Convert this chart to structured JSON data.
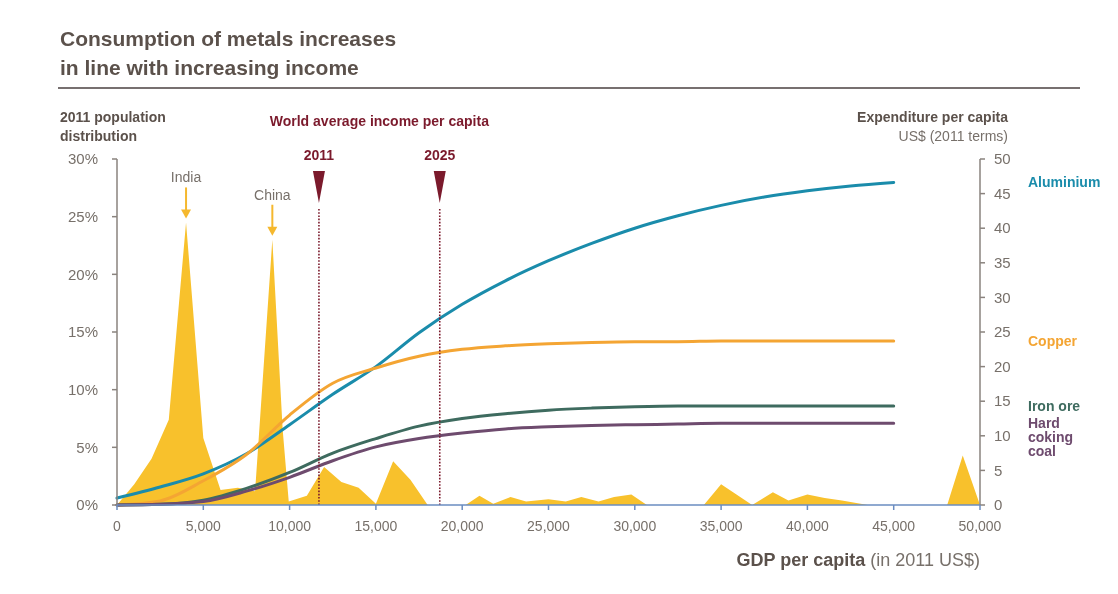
{
  "chart_data": {
    "type": "line",
    "title": "Consumption of metals increases\nin line with increasing income",
    "xlabel": "GDP per capita (in 2011 US$)",
    "ylabel": "2011 population\ndistribution",
    "y2label": "Expenditure per capita\nUS$ (2011 terms)",
    "annotations": [
      "World average income per capita",
      "2011",
      "2025",
      {
        "text": "India",
        "x": 4000,
        "y": 24.5
      },
      {
        "text": "China",
        "x": 9000,
        "y": 23.0
      }
    ],
    "xlim": [
      0,
      50000
    ],
    "xticks": [
      0,
      {
        "value": 5000,
        "label": "5,000"
      },
      {
        "value": 10000,
        "label": "10,000"
      },
      {
        "value": 15000,
        "label": "15,000"
      },
      {
        "value": 20000,
        "label": "20,000"
      },
      {
        "value": 25000,
        "label": "25,000"
      },
      {
        "value": 30000,
        "label": "30,000"
      },
      {
        "value": 35000,
        "label": "35,000"
      },
      {
        "value": 40000,
        "label": "40,000"
      },
      {
        "value": 45000,
        "label": "45,000"
      },
      {
        "value": 50000,
        "label": "50,000"
      }
    ],
    "ylim": [
      0,
      30
    ],
    "yticks": [
      {
        "value": 0,
        "label": "0%"
      },
      {
        "value": 5,
        "label": "5%"
      },
      {
        "value": 10,
        "label": "10%"
      },
      {
        "value": 15,
        "label": "15%"
      },
      {
        "value": 20,
        "label": "20%"
      },
      {
        "value": 25,
        "label": "25%"
      },
      {
        "value": 30,
        "label": "30%"
      }
    ],
    "y2lim": [
      0,
      50
    ],
    "y2ticks": [
      0,
      5,
      10,
      15,
      20,
      25,
      30,
      35,
      40,
      45,
      50
    ],
    "ref_lines": [
      {
        "axis": "x",
        "value": 11700,
        "color": "#7b1a2c",
        "line_style": "dotted"
      },
      {
        "axis": "x",
        "value": 18700,
        "color": "#7b1a2c",
        "line_style": "dotted"
      }
    ],
    "series": [
      {
        "type": "area",
        "axis": "y",
        "color": "#f8c12c",
        "x": [
          0,
          1000,
          2000,
          3000,
          4000,
          5000,
          6000,
          7000,
          8000,
          9000,
          9600,
          9950,
          11000,
          12000,
          13000,
          14000,
          15000,
          16000,
          17000,
          18000,
          20200,
          21000,
          21800,
          22800,
          23700,
          25000,
          26000,
          26900,
          27900,
          28800,
          29800,
          30700,
          34000,
          35000,
          36800,
          38000,
          38900,
          40000,
          41000,
          42000,
          43500,
          48100,
          49000,
          50000
        ],
        "values": [
          0,
          1.8,
          4.0,
          7.4,
          24.5,
          5.8,
          1.3,
          1.5,
          1.2,
          23.0,
          6.5,
          0.3,
          0.8,
          3.3,
          2.0,
          1.5,
          0.1,
          3.8,
          2.2,
          0,
          0,
          0.8,
          0.1,
          0.7,
          0.3,
          0.5,
          0.3,
          0.7,
          0.3,
          0.7,
          0.9,
          0,
          0,
          1.8,
          0,
          1.1,
          0.4,
          0.9,
          0.6,
          0.4,
          0,
          0,
          4.3,
          0
        ]
      },
      {
        "axis": "y2",
        "name": "Aluminium",
        "color": "#1a8cab",
        "x": [
          0,
          2500,
          5000,
          7500,
          10000,
          12500,
          15000,
          17500,
          20000,
          22500,
          25000,
          27500,
          30000,
          32500,
          35000,
          37500,
          40000,
          42500,
          45000
        ],
        "values": [
          1.0,
          2.6,
          4.5,
          7.4,
          11.6,
          16.0,
          20.0,
          24.9,
          29.0,
          32.4,
          35.3,
          37.8,
          40.0,
          41.8,
          43.3,
          44.5,
          45.4,
          46.1,
          46.6
        ]
      },
      {
        "axis": "y2",
        "name": "Copper",
        "color": "#f4a533",
        "x": [
          0,
          2500,
          5000,
          7500,
          10000,
          12500,
          15000,
          17500,
          20000,
          22500,
          25000,
          27500,
          30000,
          32500,
          35000,
          37500,
          40000,
          42500,
          45000
        ],
        "values": [
          0,
          0.6,
          3.5,
          7.3,
          13.0,
          17.6,
          19.8,
          21.5,
          22.5,
          23.0,
          23.3,
          23.5,
          23.6,
          23.6,
          23.7,
          23.7,
          23.7,
          23.7,
          23.7
        ]
      },
      {
        "axis": "y2",
        "name": "Iron ore",
        "color": "#3e6b5f",
        "x": [
          0,
          2500,
          5000,
          7500,
          10000,
          12500,
          15000,
          17500,
          20000,
          22500,
          25000,
          27500,
          30000,
          32500,
          35000,
          37500,
          40000,
          42500,
          45000
        ],
        "values": [
          0,
          0.1,
          0.7,
          2.4,
          4.7,
          7.5,
          9.6,
          11.4,
          12.5,
          13.2,
          13.7,
          14.0,
          14.2,
          14.3,
          14.3,
          14.3,
          14.3,
          14.3,
          14.3
        ]
      },
      {
        "axis": "y2",
        "name": "Hard coking coal",
        "color": "#6e4b6e",
        "x": [
          0,
          2500,
          5000,
          7500,
          10000,
          12500,
          15000,
          17500,
          20000,
          22500,
          25000,
          27500,
          30000,
          32500,
          35000,
          37500,
          40000,
          42500,
          45000
        ],
        "values": [
          0,
          0.1,
          0.5,
          2.0,
          4.0,
          6.4,
          8.4,
          9.6,
          10.4,
          11.0,
          11.3,
          11.5,
          11.6,
          11.7,
          11.8,
          11.8,
          11.8,
          11.8,
          11.8
        ]
      }
    ]
  }
}
